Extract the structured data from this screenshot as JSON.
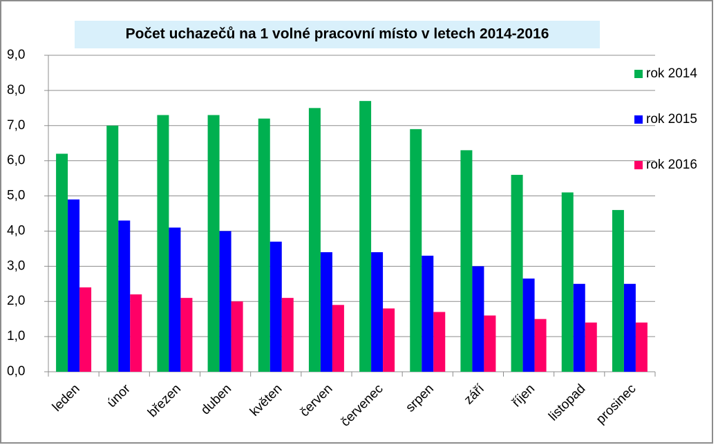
{
  "chart_data": {
    "type": "bar",
    "title": "Počet uchazečů na 1 volné pracovní místo v letech 2014-2016",
    "categories": [
      "leden",
      "únor",
      "březen",
      "duben",
      "květen",
      "červen",
      "červenec",
      "srpen",
      "září",
      "říjen",
      "listopad",
      "prosinec"
    ],
    "series": [
      {
        "name": "rok 2014",
        "color": "#00b050",
        "values": [
          6.2,
          7.0,
          7.3,
          7.3,
          7.2,
          7.5,
          7.7,
          6.9,
          6.3,
          5.6,
          5.1,
          4.6
        ]
      },
      {
        "name": "rok 2015",
        "color": "#0000ff",
        "values": [
          4.9,
          4.3,
          4.1,
          4.0,
          3.7,
          3.4,
          3.4,
          3.3,
          3.0,
          2.65,
          2.5,
          2.5
        ]
      },
      {
        "name": "rok 2016",
        "color": "#ff0066",
        "values": [
          2.4,
          2.2,
          2.1,
          2.0,
          2.1,
          1.9,
          1.8,
          1.7,
          1.6,
          1.5,
          1.4,
          1.4
        ]
      }
    ],
    "ylim": [
      0,
      9
    ],
    "yticks": [
      {
        "value": 0,
        "label": "0,0"
      },
      {
        "value": 1,
        "label": "1,0"
      },
      {
        "value": 2,
        "label": "2,0"
      },
      {
        "value": 3,
        "label": "3,0"
      },
      {
        "value": 4,
        "label": "4,0"
      },
      {
        "value": 5,
        "label": "5,0"
      },
      {
        "value": 6,
        "label": "6,0"
      },
      {
        "value": 7,
        "label": "7,0"
      },
      {
        "value": 8,
        "label": "8,0"
      },
      {
        "value": 9,
        "label": "9,0"
      }
    ],
    "grid": true,
    "legend": "right"
  }
}
